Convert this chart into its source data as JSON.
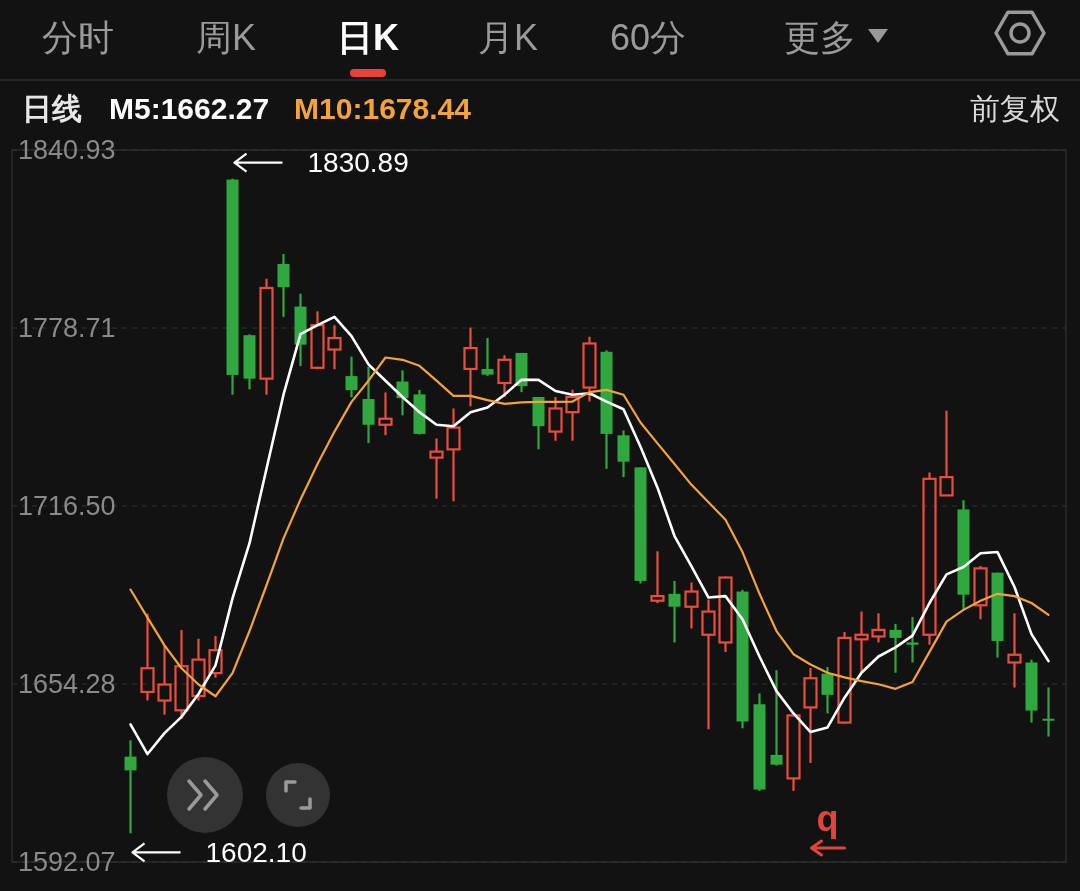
{
  "chart_data": {
    "type": "candlestick",
    "title": "日线",
    "categories": [
      null,
      null,
      null,
      null,
      null,
      null,
      null,
      null,
      null,
      null,
      null,
      null,
      null,
      null,
      null,
      null,
      null,
      null,
      null,
      null,
      null,
      null,
      null,
      null,
      null,
      null,
      null,
      null,
      null,
      null,
      null,
      null,
      null,
      null,
      null,
      null,
      null,
      null,
      null,
      null,
      null,
      null,
      null,
      null,
      null,
      null,
      null,
      null,
      null,
      null,
      null,
      null,
      null,
      null,
      null
    ],
    "ohlc": [
      [
        1628.9,
        1634.6,
        1602.1,
        1624.1
      ],
      [
        1651.5,
        1678.8,
        1648.5,
        1659.8
      ],
      [
        1648.5,
        1667.8,
        1643.5,
        1654.1
      ],
      [
        1645.1,
        1673.2,
        1642.1,
        1660.5
      ],
      [
        1650.1,
        1670.1,
        1648.5,
        1662.8
      ],
      [
        1658.1,
        1671.1,
        1656.5,
        1666.1
      ],
      [
        1830.6,
        1830.89,
        1755.4,
        1762.3
      ],
      [
        1776.2,
        1776.5,
        1757.3,
        1761.0
      ],
      [
        1761.0,
        1795.9,
        1755.4,
        1792.7
      ],
      [
        1801.1,
        1804.6,
        1782.6,
        1793.0
      ],
      [
        1786.2,
        1790.7,
        1765.4,
        1772.9
      ],
      [
        1764.8,
        1784.6,
        1764.3,
        1779.7
      ],
      [
        1771.2,
        1779.7,
        1764.3,
        1775.2
      ],
      [
        1761.9,
        1768.7,
        1754.5,
        1757.0
      ],
      [
        1753.9,
        1765.2,
        1738.5,
        1744.9
      ],
      [
        1744.9,
        1756.2,
        1741.2,
        1747.0
      ],
      [
        1760.0,
        1763.9,
        1748.2,
        1754.2
      ],
      [
        1755.5,
        1757.1,
        1741.5,
        1741.7
      ],
      [
        1733.4,
        1740.1,
        1719.0,
        1735.5
      ],
      [
        1736.3,
        1750.6,
        1718.2,
        1743.9
      ],
      [
        1764.4,
        1778.9,
        1751.4,
        1771.7
      ],
      [
        1764.4,
        1775.2,
        1762.0,
        1762.4
      ],
      [
        1759.5,
        1769.2,
        1754.6,
        1767.6
      ],
      [
        1770.0,
        1770.0,
        1756.3,
        1758.4
      ],
      [
        1754.6,
        1754.6,
        1736.3,
        1744.4
      ],
      [
        1742.5,
        1754.6,
        1739.3,
        1750.6
      ],
      [
        1749.3,
        1757.1,
        1739.3,
        1754.6
      ],
      [
        1757.9,
        1775.7,
        1753.0,
        1773.3
      ],
      [
        1770.4,
        1770.9,
        1729.5,
        1741.7
      ],
      [
        1741.2,
        1742.9,
        1726.6,
        1732.0
      ],
      [
        1730.0,
        1730.0,
        1689.4,
        1690.3
      ],
      [
        1683.4,
        1700.7,
        1682.6,
        1685.0
      ],
      [
        1685.8,
        1690.3,
        1668.8,
        1681.3
      ],
      [
        1681.3,
        1689.8,
        1673.7,
        1686.6
      ],
      [
        1671.5,
        1683.8,
        1638.5,
        1679.6
      ],
      [
        1668.8,
        1691.9,
        1665.5,
        1691.5
      ],
      [
        1686.6,
        1687.2,
        1638.8,
        1641.2
      ],
      [
        1647.2,
        1651.0,
        1616.9,
        1617.4
      ],
      [
        1629.5,
        1659.1,
        1625.8,
        1626.1
      ],
      [
        1621.3,
        1643.3,
        1616.9,
        1643.3
      ],
      [
        1646.1,
        1659.9,
        1626.7,
        1656.3
      ],
      [
        1657.9,
        1660.2,
        1644.0,
        1650.5
      ],
      [
        1640.8,
        1672.5,
        1640.5,
        1670.4
      ],
      [
        1669.9,
        1679.6,
        1658.2,
        1671.5
      ],
      [
        1670.9,
        1679.0,
        1668.8,
        1673.2
      ],
      [
        1673.2,
        1675.3,
        1658.2,
        1670.4
      ],
      [
        1668.8,
        1677.7,
        1661.8,
        1668.0
      ],
      [
        1671.5,
        1728.2,
        1668.0,
        1726.0
      ],
      [
        1720.2,
        1749.8,
        1720.2,
        1726.6
      ],
      [
        1715.3,
        1718.5,
        1680.2,
        1685.5
      ],
      [
        1681.8,
        1695.5,
        1676.9,
        1694.7
      ],
      [
        1693.2,
        1693.2,
        1663.5,
        1669.3
      ],
      [
        1661.8,
        1679.0,
        1653.1,
        1664.5
      ],
      [
        1661.8,
        1662.8,
        1640.8,
        1645.0
      ],
      [
        1642.1,
        1653.1,
        1635.9,
        1641.5
      ]
    ],
    "colors": [
      "#2fa83f",
      "#eb4d3d",
      "#eb4d3d",
      "#eb4d3d",
      "#eb4d3d",
      "#eb4d3d",
      "#2fa83f",
      "#2fa83f",
      "#eb4d3d",
      "#2fa83f",
      "#2fa83f",
      "#eb4d3d",
      "#eb4d3d",
      "#2fa83f",
      "#2fa83f",
      "#eb4d3d",
      "#2fa83f",
      "#2fa83f",
      "#eb4d3d",
      "#eb4d3d",
      "#eb4d3d",
      "#2fa83f",
      "#eb4d3d",
      "#2fa83f",
      "#2fa83f",
      "#eb4d3d",
      "#eb4d3d",
      "#eb4d3d",
      "#2fa83f",
      "#2fa83f",
      "#2fa83f",
      "#eb4d3d",
      "#2fa83f",
      "#eb4d3d",
      "#eb4d3d",
      "#eb4d3d",
      "#2fa83f",
      "#2fa83f",
      "#2fa83f",
      "#eb4d3d",
      "#eb4d3d",
      "#2fa83f",
      "#eb4d3d",
      "#eb4d3d",
      "#eb4d3d",
      "#2fa83f",
      "#2fa83f",
      "#eb4d3d",
      "#eb4d3d",
      "#2fa83f",
      "#eb4d3d",
      "#2fa83f",
      "#eb4d3d",
      "#2fa83f",
      "#2fa83f"
    ],
    "series": [
      {
        "name": "M5:1662.27",
        "type": "line",
        "color": "#ffffff",
        "values": [
          1640.2,
          1629.8,
          1637.1,
          1642.8,
          1650.8,
          1660.8,
          1684.2,
          1703.5,
          1729.5,
          1755.4,
          1776.6,
          1779.7,
          1782.6,
          1775.9,
          1766.0,
          1760.3,
          1754.6,
          1749.3,
          1744.9,
          1744.4,
          1749.3,
          1750.9,
          1755.4,
          1760.6,
          1760.6,
          1756.7,
          1755.4,
          1755.9,
          1753.0,
          1750.3,
          1737.2,
          1722.9,
          1706.0,
          1695.4,
          1684.5,
          1685.0,
          1676.9,
          1663.9,
          1651.8,
          1644.0,
          1637.5,
          1639.1,
          1649.5,
          1658.2,
          1663.9,
          1667.1,
          1671.2,
          1682.6,
          1692.6,
          1695.2,
          1700.0,
          1700.4,
          1688.2,
          1671.7,
          1662.27
        ]
      },
      {
        "name": "M10:1678.44",
        "type": "line",
        "color": "#f2a33a",
        "values": [
          1687.3,
          1677.5,
          1667.8,
          1659.8,
          1654.1,
          1650.0,
          1658.1,
          1672.8,
          1688.8,
          1705.2,
          1718.8,
          1731.2,
          1742.5,
          1752.9,
          1760.3,
          1768.4,
          1767.6,
          1765.5,
          1760.3,
          1755.0,
          1755.0,
          1753.5,
          1752.2,
          1752.7,
          1752.9,
          1752.9,
          1753.0,
          1756.3,
          1757.1,
          1755.4,
          1745.7,
          1738.4,
          1731.2,
          1723.9,
          1717.8,
          1711.7,
          1700.4,
          1685.8,
          1672.8,
          1664.7,
          1661.1,
          1658.2,
          1656.6,
          1655.3,
          1654.2,
          1652.6,
          1655.0,
          1665.5,
          1676.1,
          1680.2,
          1683.4,
          1685.8,
          1685.0,
          1682.6,
          1678.44
        ]
      }
    ],
    "ylim": [
      1592.07,
      1840.93
    ],
    "yticks": [
      1592.07,
      1654.28,
      {
        "value": 1716.5,
        "label": "1716.50"
      },
      1778.71,
      1840.93
    ],
    "grid": "y",
    "tick_labels": "y",
    "legend": "top left",
    "annotations": [
      "分时",
      "周K",
      "日K",
      "月K",
      "60分",
      "更多",
      "前复权",
      "1830.89",
      "1602.10",
      "q"
    ]
  }
}
